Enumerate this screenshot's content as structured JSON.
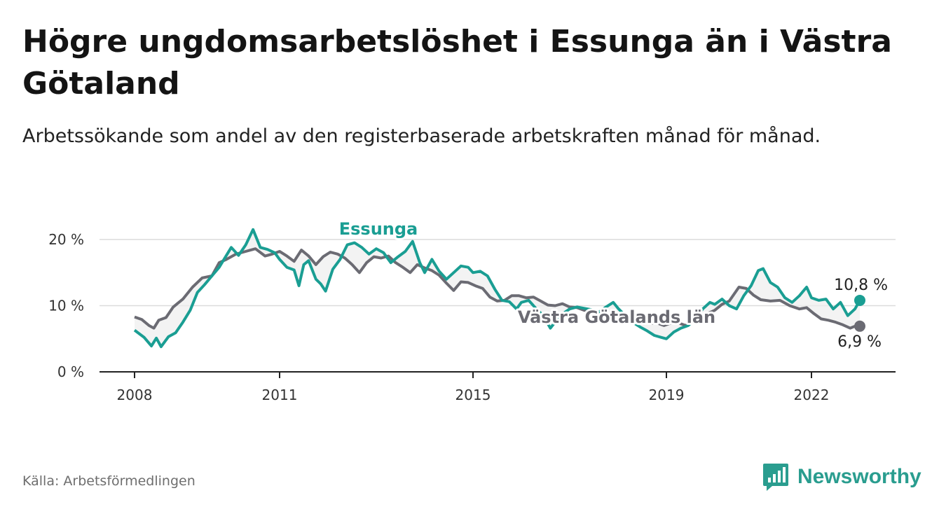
{
  "title": "Högre ungdomsarbetslöshet i Essunga än i Västra Götaland",
  "subtitle": "Arbetssökande som andel av den registerbaserade arbetskraften månad för månad.",
  "source": "Källa: Arbetsförmedlingen",
  "brand": {
    "name": "Newsworthy",
    "icon": "newsworthy-logo-icon"
  },
  "colors": {
    "essunga": "#1a9e93",
    "vg": "#6b6b73",
    "grid": "#dcdcdc",
    "fill": "#eeeeee"
  },
  "chart_data": {
    "type": "line",
    "x_range": [
      2008,
      2023
    ],
    "ylim": [
      0,
      20
    ],
    "yticks": [
      0,
      10,
      20
    ],
    "ytick_labels": [
      "0 %",
      "10 %",
      "20 %"
    ],
    "xticks": [
      2008,
      2011,
      2015,
      2019,
      2022
    ],
    "xtick_labels": [
      "2008",
      "2011",
      "2015",
      "2019",
      "2022"
    ],
    "grid": true,
    "series": [
      {
        "name": "Essunga",
        "label": "Essunga",
        "end_label": "10,8 %",
        "points": [
          [
            2008.0,
            6.3
          ],
          [
            2008.2,
            5.2
          ],
          [
            2008.35,
            3.9
          ],
          [
            2008.45,
            5.1
          ],
          [
            2008.55,
            3.8
          ],
          [
            2008.7,
            5.3
          ],
          [
            2008.85,
            5.9
          ],
          [
            2009.0,
            7.5
          ],
          [
            2009.15,
            9.3
          ],
          [
            2009.3,
            12.0
          ],
          [
            2009.45,
            13.2
          ],
          [
            2009.6,
            14.5
          ],
          [
            2009.75,
            15.8
          ],
          [
            2009.9,
            17.6
          ],
          [
            2010.0,
            18.8
          ],
          [
            2010.15,
            17.6
          ],
          [
            2010.3,
            19.2
          ],
          [
            2010.45,
            21.5
          ],
          [
            2010.6,
            18.8
          ],
          [
            2010.75,
            18.5
          ],
          [
            2010.9,
            18.0
          ],
          [
            2011.0,
            17.0
          ],
          [
            2011.15,
            15.8
          ],
          [
            2011.3,
            15.4
          ],
          [
            2011.4,
            13.0
          ],
          [
            2011.5,
            16.2
          ],
          [
            2011.6,
            16.8
          ],
          [
            2011.75,
            14.0
          ],
          [
            2011.85,
            13.3
          ],
          [
            2011.95,
            12.2
          ],
          [
            2012.1,
            15.5
          ],
          [
            2012.25,
            17.0
          ],
          [
            2012.4,
            19.2
          ],
          [
            2012.55,
            19.5
          ],
          [
            2012.7,
            18.8
          ],
          [
            2012.85,
            17.8
          ],
          [
            2013.0,
            18.6
          ],
          [
            2013.15,
            18.0
          ],
          [
            2013.3,
            16.5
          ],
          [
            2013.45,
            17.4
          ],
          [
            2013.6,
            18.2
          ],
          [
            2013.75,
            19.7
          ],
          [
            2013.9,
            16.5
          ],
          [
            2014.0,
            15.0
          ],
          [
            2014.15,
            17.0
          ],
          [
            2014.3,
            15.2
          ],
          [
            2014.45,
            14.0
          ],
          [
            2014.6,
            15.0
          ],
          [
            2014.75,
            16.0
          ],
          [
            2014.9,
            15.8
          ],
          [
            2015.0,
            15.0
          ],
          [
            2015.15,
            15.2
          ],
          [
            2015.3,
            14.5
          ],
          [
            2015.45,
            12.5
          ],
          [
            2015.6,
            10.8
          ],
          [
            2015.75,
            10.6
          ],
          [
            2015.9,
            9.5
          ],
          [
            2016.0,
            10.5
          ],
          [
            2016.15,
            10.8
          ],
          [
            2016.3,
            9.6
          ],
          [
            2016.45,
            8.5
          ],
          [
            2016.6,
            6.6
          ],
          [
            2016.75,
            8.0
          ],
          [
            2016.9,
            9.0
          ],
          [
            2017.0,
            9.5
          ],
          [
            2017.15,
            9.8
          ],
          [
            2017.3,
            9.6
          ],
          [
            2017.45,
            9.4
          ],
          [
            2017.6,
            9.0
          ],
          [
            2017.75,
            9.8
          ],
          [
            2017.9,
            10.5
          ],
          [
            2018.0,
            9.6
          ],
          [
            2018.15,
            8.5
          ],
          [
            2018.3,
            7.5
          ],
          [
            2018.45,
            6.8
          ],
          [
            2018.6,
            6.2
          ],
          [
            2018.75,
            5.5
          ],
          [
            2018.9,
            5.2
          ],
          [
            2019.0,
            5.0
          ],
          [
            2019.15,
            6.0
          ],
          [
            2019.3,
            6.6
          ],
          [
            2019.45,
            7.0
          ],
          [
            2019.6,
            8.0
          ],
          [
            2019.75,
            9.5
          ],
          [
            2019.9,
            10.5
          ],
          [
            2020.0,
            10.2
          ],
          [
            2020.15,
            11.0
          ],
          [
            2020.3,
            10.0
          ],
          [
            2020.45,
            9.5
          ],
          [
            2020.6,
            11.5
          ],
          [
            2020.75,
            13.0
          ],
          [
            2020.9,
            15.3
          ],
          [
            2021.0,
            15.6
          ],
          [
            2021.15,
            13.5
          ],
          [
            2021.3,
            12.8
          ],
          [
            2021.45,
            11.2
          ],
          [
            2021.6,
            10.5
          ],
          [
            2021.75,
            11.5
          ],
          [
            2021.9,
            12.8
          ],
          [
            2022.0,
            11.2
          ],
          [
            2022.15,
            10.8
          ],
          [
            2022.3,
            11.0
          ],
          [
            2022.45,
            9.5
          ],
          [
            2022.6,
            10.5
          ],
          [
            2022.75,
            8.5
          ],
          [
            2022.9,
            9.5
          ],
          [
            2023.0,
            10.8
          ]
        ]
      },
      {
        "name": "Västra Götalands län",
        "label": "Västra Götalands län",
        "end_label": "6,9 %",
        "points": [
          [
            2008.0,
            8.3
          ],
          [
            2008.15,
            7.9
          ],
          [
            2008.3,
            7.0
          ],
          [
            2008.4,
            6.6
          ],
          [
            2008.5,
            7.8
          ],
          [
            2008.65,
            8.2
          ],
          [
            2008.8,
            9.8
          ],
          [
            2009.0,
            11.0
          ],
          [
            2009.2,
            12.8
          ],
          [
            2009.4,
            14.2
          ],
          [
            2009.6,
            14.5
          ],
          [
            2009.75,
            16.5
          ],
          [
            2009.9,
            17.0
          ],
          [
            2010.1,
            17.8
          ],
          [
            2010.3,
            18.2
          ],
          [
            2010.5,
            18.6
          ],
          [
            2010.7,
            17.5
          ],
          [
            2010.85,
            17.8
          ],
          [
            2011.0,
            18.2
          ],
          [
            2011.15,
            17.5
          ],
          [
            2011.3,
            16.7
          ],
          [
            2011.45,
            18.4
          ],
          [
            2011.6,
            17.5
          ],
          [
            2011.75,
            16.2
          ],
          [
            2011.9,
            17.4
          ],
          [
            2012.05,
            18.1
          ],
          [
            2012.2,
            17.8
          ],
          [
            2012.35,
            17.2
          ],
          [
            2012.5,
            16.2
          ],
          [
            2012.65,
            15.0
          ],
          [
            2012.8,
            16.5
          ],
          [
            2012.95,
            17.4
          ],
          [
            2013.1,
            17.2
          ],
          [
            2013.25,
            17.5
          ],
          [
            2013.4,
            16.5
          ],
          [
            2013.55,
            15.8
          ],
          [
            2013.7,
            15.0
          ],
          [
            2013.85,
            16.2
          ],
          [
            2014.0,
            15.7
          ],
          [
            2014.15,
            15.3
          ],
          [
            2014.3,
            14.6
          ],
          [
            2014.45,
            13.4
          ],
          [
            2014.6,
            12.3
          ],
          [
            2014.75,
            13.6
          ],
          [
            2014.9,
            13.5
          ],
          [
            2015.05,
            13.0
          ],
          [
            2015.2,
            12.6
          ],
          [
            2015.35,
            11.3
          ],
          [
            2015.5,
            10.7
          ],
          [
            2015.65,
            10.8
          ],
          [
            2015.8,
            11.5
          ],
          [
            2015.95,
            11.5
          ],
          [
            2016.1,
            11.2
          ],
          [
            2016.25,
            11.3
          ],
          [
            2016.4,
            10.7
          ],
          [
            2016.55,
            10.1
          ],
          [
            2016.7,
            10.0
          ],
          [
            2016.85,
            10.3
          ],
          [
            2017.0,
            9.8
          ],
          [
            2017.15,
            9.7
          ],
          [
            2017.3,
            9.3
          ],
          [
            2017.45,
            9.4
          ],
          [
            2017.6,
            8.9
          ],
          [
            2017.75,
            8.5
          ],
          [
            2017.9,
            8.8
          ],
          [
            2018.05,
            8.4
          ],
          [
            2018.2,
            8.2
          ],
          [
            2018.35,
            7.9
          ],
          [
            2018.5,
            7.6
          ],
          [
            2018.65,
            7.3
          ],
          [
            2018.8,
            7.4
          ],
          [
            2018.95,
            7.0
          ],
          [
            2019.1,
            7.4
          ],
          [
            2019.25,
            7.4
          ],
          [
            2019.4,
            7.0
          ],
          [
            2019.55,
            7.8
          ],
          [
            2019.7,
            8.3
          ],
          [
            2019.85,
            8.8
          ],
          [
            2020.0,
            9.3
          ],
          [
            2020.15,
            10.2
          ],
          [
            2020.3,
            10.7
          ],
          [
            2020.5,
            12.8
          ],
          [
            2020.65,
            12.6
          ],
          [
            2020.8,
            11.6
          ],
          [
            2020.95,
            10.9
          ],
          [
            2021.15,
            10.7
          ],
          [
            2021.35,
            10.8
          ],
          [
            2021.55,
            10.0
          ],
          [
            2021.75,
            9.5
          ],
          [
            2021.9,
            9.7
          ],
          [
            2022.05,
            8.8
          ],
          [
            2022.2,
            8.0
          ],
          [
            2022.35,
            7.8
          ],
          [
            2022.5,
            7.5
          ],
          [
            2022.65,
            7.1
          ],
          [
            2022.8,
            6.6
          ],
          [
            2022.9,
            6.9
          ],
          [
            2023.0,
            6.9
          ]
        ]
      }
    ]
  }
}
